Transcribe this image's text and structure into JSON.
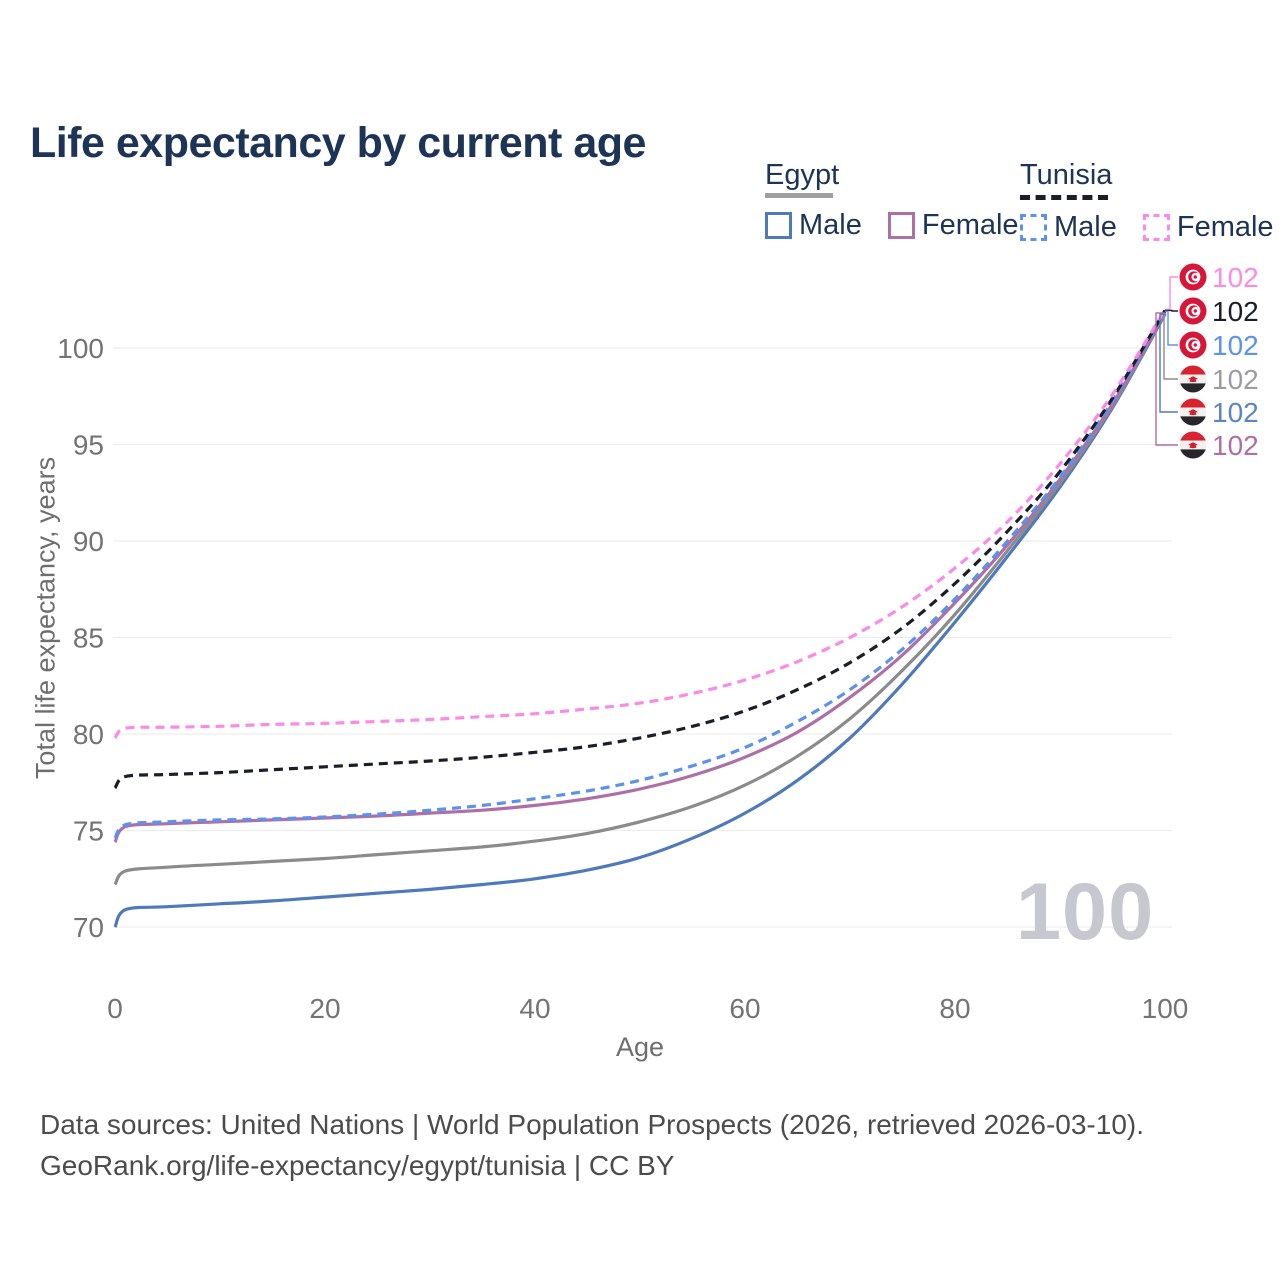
{
  "title": "Life expectancy by current age",
  "watermark": "100",
  "legend": {
    "groups": [
      {
        "country": "Egypt",
        "line_style": "solid",
        "underline_color": "#9e9e9e",
        "items": [
          {
            "label": "Male",
            "color": "#4e79bc"
          },
          {
            "label": "Female",
            "color": "#ad6fa6"
          }
        ]
      },
      {
        "country": "Tunisia",
        "line_style": "dashed",
        "underline_color": "#1b1e28",
        "items": [
          {
            "label": "Male",
            "color": "#5b92f0"
          },
          {
            "label": "Female",
            "color": "#fb8ae4"
          }
        ]
      }
    ]
  },
  "chart_data": {
    "type": "line",
    "title": "Life expectancy by current age",
    "xlabel": "Age",
    "ylabel": "Total life expectancy, years",
    "xlim": [
      0,
      100
    ],
    "ylim": [
      68.5,
      103
    ],
    "x_ticks": [
      0,
      20,
      40,
      60,
      80,
      100
    ],
    "y_ticks": [
      70,
      75,
      80,
      85,
      90,
      95,
      100
    ],
    "grid": "horizontal",
    "legend_position": "top-right",
    "x": [
      0,
      1,
      5,
      10,
      15,
      20,
      25,
      30,
      35,
      40,
      45,
      50,
      55,
      60,
      65,
      70,
      75,
      80,
      85,
      90,
      95,
      100
    ],
    "series": [
      {
        "id": "egypt-male",
        "name": "Egypt Male",
        "country": "Egypt",
        "sex": "Male",
        "color": "#4e79bc",
        "dash": false,
        "values": [
          70.0,
          70.9,
          71.05,
          71.2,
          71.35,
          71.55,
          71.75,
          71.95,
          72.2,
          72.5,
          72.95,
          73.6,
          74.6,
          75.9,
          77.6,
          79.8,
          82.6,
          85.8,
          89.2,
          92.8,
          96.9,
          101.75
        ]
      },
      {
        "id": "egypt-both",
        "name": "Egypt (both sexes)",
        "country": "Egypt",
        "sex": "Both",
        "color": "#8b8b8b",
        "dash": false,
        "values": [
          72.2,
          72.9,
          73.1,
          73.25,
          73.4,
          73.55,
          73.75,
          73.95,
          74.15,
          74.45,
          74.85,
          75.45,
          76.25,
          77.35,
          78.85,
          80.8,
          83.3,
          86.2,
          89.5,
          93.0,
          97.0,
          101.8
        ]
      },
      {
        "id": "egypt-female",
        "name": "Egypt Female",
        "country": "Egypt",
        "sex": "Female",
        "color": "#ad6fa6",
        "dash": false,
        "values": [
          74.4,
          75.2,
          75.35,
          75.45,
          75.55,
          75.65,
          75.75,
          75.9,
          76.05,
          76.3,
          76.65,
          77.15,
          77.85,
          78.8,
          80.1,
          81.9,
          84.1,
          86.8,
          89.8,
          93.2,
          97.1,
          101.82
        ]
      },
      {
        "id": "tunisia-male",
        "name": "Tunisia Male",
        "country": "Tunisia",
        "sex": "Male",
        "color": "#5b92f0",
        "dash": true,
        "values": [
          74.6,
          75.3,
          75.45,
          75.55,
          75.6,
          75.7,
          75.85,
          76.05,
          76.3,
          76.65,
          77.05,
          77.6,
          78.35,
          79.3,
          80.65,
          82.3,
          84.4,
          87.0,
          90.0,
          93.3,
          97.25,
          101.9
        ]
      },
      {
        "id": "tunisia-both",
        "name": "Tunisia (both sexes)",
        "country": "Tunisia",
        "sex": "Both",
        "color": "#1b1e28",
        "dash": true,
        "values": [
          77.2,
          77.8,
          77.9,
          78.0,
          78.15,
          78.3,
          78.45,
          78.6,
          78.8,
          79.05,
          79.35,
          79.8,
          80.4,
          81.2,
          82.3,
          83.7,
          85.5,
          87.8,
          90.5,
          93.6,
          97.4,
          101.95
        ]
      },
      {
        "id": "tunisia-female",
        "name": "Tunisia Female",
        "country": "Tunisia",
        "sex": "Female",
        "color": "#fb8ae4",
        "dash": true,
        "values": [
          79.8,
          80.3,
          80.35,
          80.4,
          80.5,
          80.55,
          80.65,
          80.75,
          80.9,
          81.05,
          81.3,
          81.6,
          82.1,
          82.8,
          83.75,
          85.0,
          86.6,
          88.6,
          91.0,
          94.0,
          97.6,
          102.0
        ]
      }
    ],
    "end_labels": [
      {
        "value": "102",
        "series_id": "tunisia-female",
        "color": "#fb8ae4",
        "flag": "tunisia"
      },
      {
        "value": "102",
        "series_id": "tunisia-both",
        "color": "#1b1e28",
        "flag": "tunisia"
      },
      {
        "value": "102",
        "series_id": "tunisia-male",
        "color": "#5b92f0",
        "flag": "tunisia"
      },
      {
        "value": "102",
        "series_id": "egypt-both",
        "color": "#9b9ba3",
        "flag": "egypt"
      },
      {
        "value": "102",
        "series_id": "egypt-male",
        "color": "#5b84c4",
        "flag": "egypt"
      },
      {
        "value": "102",
        "series_id": "egypt-female",
        "color": "#ad6fa6",
        "flag": "egypt"
      }
    ]
  },
  "footer": {
    "line1": "Data sources: United Nations | World Population Prospects (2026, retrieved 2026-03-10).",
    "line2": "GeoRank.org/life-expectancy/egypt/tunisia | CC BY"
  }
}
